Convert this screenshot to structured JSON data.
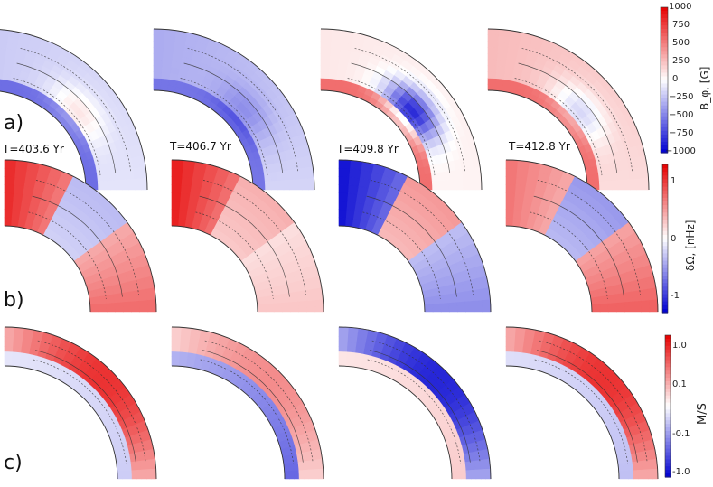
{
  "rows": {
    "a": {
      "label": "a)"
    },
    "b": {
      "label": "b)"
    },
    "c": {
      "label": "c)"
    }
  },
  "times": [
    "T=403.6 Yr",
    "T=406.7 Yr",
    "T=409.8 Yr",
    "T=412.8 Yr"
  ],
  "colorbars": {
    "a": {
      "title": "B_φ, [G]",
      "ticks": [
        "1000",
        "750",
        "500",
        "250",
        "0",
        "−250",
        "−500",
        "−750",
        "−1000"
      ]
    },
    "b": {
      "title": "δΩ, [nHz]",
      "ticks": [
        "1",
        "0",
        "-1"
      ]
    },
    "c": {
      "title": "M/S",
      "ticks": [
        "1.0",
        "0.1",
        "-0.1",
        "-1.0"
      ]
    }
  },
  "colors": {
    "positive": "#e60000",
    "negative": "#0000d0",
    "neutral": "#ffffff",
    "contour": "#333333"
  },
  "panel_signs": {
    "a": [
      {
        "outer": -0.35,
        "inner": -0.95,
        "core": 0.25
      },
      {
        "outer": -0.55,
        "inner": -0.9,
        "core": -0.2
      },
      {
        "outer": 0.15,
        "inner": 0.95,
        "core": -0.9
      },
      {
        "outer": 0.45,
        "inner": 0.95,
        "core": -0.35
      }
    ],
    "b": [
      {
        "pole": 0.85,
        "mid": -0.3,
        "eq": 0.65
      },
      {
        "pole": 0.9,
        "mid": 0.35,
        "eq": 0.25
      },
      {
        "pole": -0.95,
        "mid": 0.45,
        "eq": -0.5
      },
      {
        "pole": 0.55,
        "mid": -0.45,
        "eq": 0.7
      }
    ],
    "c": [
      {
        "outer": 0.8,
        "inner": -0.2
      },
      {
        "outer": 0.45,
        "inner": -0.6
      },
      {
        "outer": -0.85,
        "inner": 0.2
      },
      {
        "outer": 0.8,
        "inner": -0.25
      }
    ]
  }
}
